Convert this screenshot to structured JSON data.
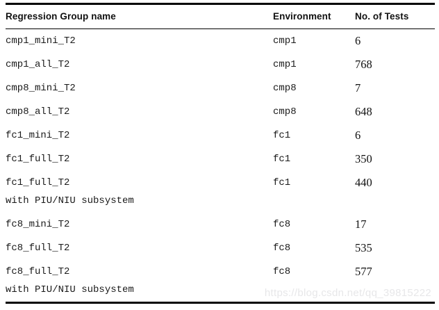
{
  "table": {
    "headers": {
      "name": "Regression Group name",
      "environment": "Environment",
      "tests": "No. of Tests"
    },
    "rows": [
      {
        "name": "cmp1_mini_T2",
        "env": "cmp1",
        "tests": "6"
      },
      {
        "name": "cmp1_all_T2",
        "env": "cmp1",
        "tests": "768"
      },
      {
        "name": "cmp8_mini_T2",
        "env": "cmp8",
        "tests": "7"
      },
      {
        "name": "cmp8_all_T2",
        "env": "cmp8",
        "tests": "648"
      },
      {
        "name": "fc1_mini_T2",
        "env": "fc1",
        "tests": "6"
      },
      {
        "name": "fc1_full_T2",
        "env": "fc1",
        "tests": "350"
      },
      {
        "name": "fc1_full_T2",
        "name_line2": "with PIU/NIU subsystem",
        "env": "fc1",
        "tests": "440"
      },
      {
        "name": "fc8_mini_T2",
        "env": "fc8",
        "tests": "17"
      },
      {
        "name": "fc8_full_T2",
        "env": "fc8",
        "tests": "535"
      },
      {
        "name": "fc8_full_T2",
        "name_line2": "with PIU/NIU subsystem",
        "env": "fc8",
        "tests": "577"
      }
    ]
  },
  "watermark": {
    "text": "https://blog.csdn.net/qq_39815222"
  },
  "colors": {
    "rule": "#000000",
    "header_text": "#111111",
    "body_text": "#1a1a1a",
    "watermark": "#e7e7e9",
    "background": "#ffffff"
  }
}
